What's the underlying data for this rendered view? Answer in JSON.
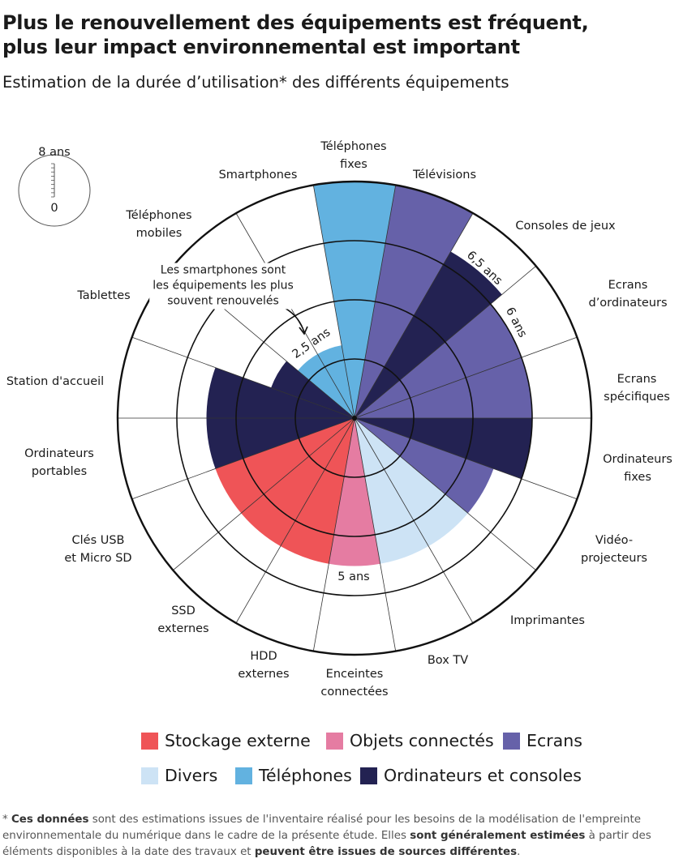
{
  "header": {
    "title_line1": "Plus le renouvellement des équipements est fréquent,",
    "title_line2": "plus leur impact environnemental est important",
    "subtitle": "Estimation de la durée d’utilisation* des différents équipements"
  },
  "scale_key": {
    "max_label": "8 ans",
    "min_label": "0"
  },
  "annotations": {
    "callout": "Les smartphones sont\nles équipements les plus\nsouvent renouvelés",
    "val_2_5": "2,5 ans",
    "val_6_5": "6,5 ans",
    "val_6": "6 ans",
    "val_5": "5 ans"
  },
  "colors": {
    "Stockage externe": "#EF5457",
    "Objets connectés": "#E57CA2",
    "Ecrans": "#6661A9",
    "Divers": "#CDE3F5",
    "Téléphones": "#62B2E0",
    "Ordinateurs et consoles": "#232252"
  },
  "chart_data": {
    "type": "polar-bar",
    "unit": "ans",
    "rlim": [
      0,
      8
    ],
    "rings": [
      2,
      4,
      6,
      8
    ],
    "categories": [
      "Téléphones\nfixes",
      "Télévisions",
      "Consoles de jeux",
      "Ecrans\nd’ordinateurs",
      "Ecrans\nspécifiques",
      "Ordinateurs\nfixes",
      "Vidéo-\nprojecteurs",
      "Imprimantes",
      "Box TV",
      "Enceintes\nconnectées",
      "HDD\nexternes",
      "SSD\nexternes",
      "Clés USB\net Micro SD",
      "Ordinateurs\nportables",
      "Station d'accueil",
      "Tablettes",
      "Téléphones\nmobiles",
      "Smartphones"
    ],
    "values": [
      8,
      8,
      6.5,
      6,
      6,
      6,
      5,
      5,
      5,
      5,
      5,
      5,
      5,
      5,
      5,
      3,
      2.5,
      2.5
    ],
    "groups": [
      "Téléphones",
      "Ecrans",
      "Ordinateurs et consoles",
      "Ecrans",
      "Ecrans",
      "Ordinateurs et consoles",
      "Ecrans",
      "Divers",
      "Divers",
      "Objets connectés",
      "Stockage externe",
      "Stockage externe",
      "Stockage externe",
      "Ordinateurs et consoles",
      "Ordinateurs et consoles",
      "Ordinateurs et consoles",
      "Téléphones",
      "Téléphones"
    ],
    "legend": [
      "Stockage externe",
      "Objets connectés",
      "Ecrans",
      "Divers",
      "Téléphones",
      "Ordinateurs et consoles"
    ],
    "legend_placement": "bottom"
  },
  "footnote": {
    "p1": "* ",
    "b1": "Ces données",
    "p2": " sont des estimations issues de l'inventaire réalisé pour les besoins de la modélisation de l'empreinte environnementale du numérique dans le cadre de la présente étude. Elles ",
    "b2": "sont généralement estimées",
    "p3": " à partir des éléments disponibles à la date des travaux et ",
    "b3": "peuvent être issues de sources différentes",
    "p4": "."
  }
}
